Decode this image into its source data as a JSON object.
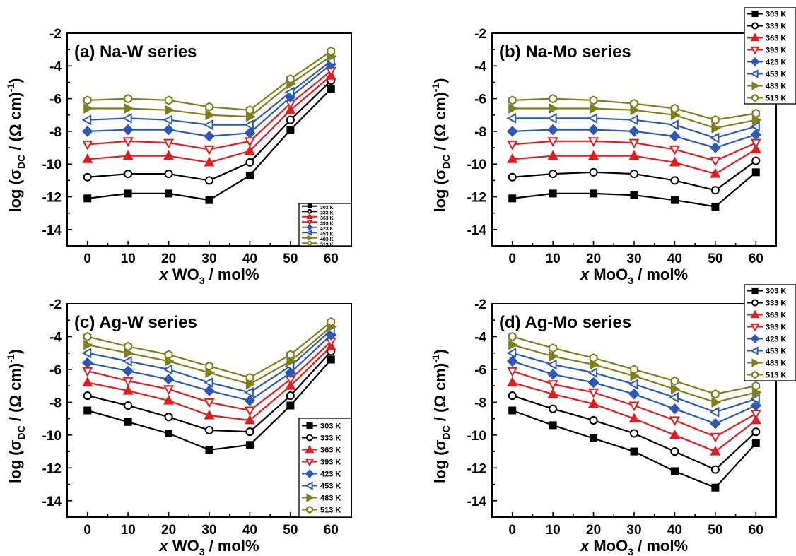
{
  "chart_data": [
    {
      "type": "line",
      "title": "(a) Na-W series",
      "xlabel": {
        "var": "x",
        "pre": " WO",
        "sub": "3",
        "post": " / mol%"
      },
      "ylabel": {
        "pre": "log (σ",
        "sub": "DC",
        "mid": " / (Ω cm)",
        "sup": "-1",
        "post": ")"
      },
      "x": [
        0,
        10,
        20,
        30,
        40,
        50,
        60
      ],
      "xlim": [
        -5,
        65
      ],
      "ylim": [
        -15,
        -2
      ],
      "xticks": [
        0,
        10,
        20,
        30,
        40,
        50,
        60
      ],
      "yticks": [
        -14,
        -12,
        -10,
        -8,
        -6,
        -4,
        -2
      ],
      "legend": "bottom-right",
      "series": [
        {
          "name": "303 K",
          "color": "#000000",
          "marker": "square",
          "values": [
            -12.1,
            -11.8,
            -11.8,
            -12.2,
            -10.7,
            -7.9,
            -5.4
          ]
        },
        {
          "name": "333 K",
          "color": "#000000",
          "marker": "circle-open",
          "values": [
            -10.8,
            -10.6,
            -10.6,
            -11.0,
            -9.9,
            -7.3,
            -4.9
          ]
        },
        {
          "name": "363 K",
          "color": "#e41a1c",
          "marker": "triangle-up",
          "values": [
            -9.7,
            -9.5,
            -9.5,
            -9.9,
            -9.2,
            -6.7,
            -4.6
          ]
        },
        {
          "name": "393 K",
          "color": "#e41a1c",
          "marker": "triangle-down-open",
          "values": [
            -8.8,
            -8.6,
            -8.7,
            -9.1,
            -8.6,
            -6.3,
            -4.3
          ]
        },
        {
          "name": "423 K",
          "color": "#2c58b8",
          "marker": "diamond",
          "values": [
            -8.0,
            -7.9,
            -7.9,
            -8.3,
            -8.1,
            -5.9,
            -3.9
          ]
        },
        {
          "name": "453 K",
          "color": "#2c58b8",
          "marker": "triangle-left-open",
          "values": [
            -7.3,
            -7.2,
            -7.3,
            -7.6,
            -7.6,
            -5.6,
            -3.7
          ]
        },
        {
          "name": "483 K",
          "color": "#7f7f1a",
          "marker": "triangle-right",
          "values": [
            -6.6,
            -6.6,
            -6.7,
            -7.0,
            -7.1,
            -5.1,
            -3.4
          ]
        },
        {
          "name": "513 K",
          "color": "#7f7f1a",
          "marker": "hexagon-open",
          "values": [
            -6.1,
            -6.0,
            -6.1,
            -6.5,
            -6.7,
            -4.8,
            -3.1
          ]
        }
      ]
    },
    {
      "type": "line",
      "title": "(b) Na-Mo series",
      "xlabel": {
        "var": "x",
        "pre": " MoO",
        "sub": "3",
        "post": " / mol%"
      },
      "ylabel": {
        "pre": "log (σ",
        "sub": "DC",
        "mid": " / (Ω cm)",
        "sup": "-1",
        "post": ")"
      },
      "x": [
        0,
        10,
        20,
        30,
        40,
        50,
        60
      ],
      "xlim": [
        -5,
        65
      ],
      "ylim": [
        -15,
        -2
      ],
      "xticks": [
        0,
        10,
        20,
        30,
        40,
        50,
        60
      ],
      "yticks": [
        -14,
        -12,
        -10,
        -8,
        -6,
        -4,
        -2
      ],
      "legend": "top-right",
      "series": [
        {
          "name": "303 K",
          "color": "#000000",
          "marker": "square",
          "values": [
            -12.1,
            -11.8,
            -11.8,
            -11.9,
            -12.2,
            -12.6,
            -10.5
          ]
        },
        {
          "name": "333 K",
          "color": "#000000",
          "marker": "circle-open",
          "values": [
            -10.8,
            -10.6,
            -10.5,
            -10.6,
            -11.0,
            -11.6,
            -9.8
          ]
        },
        {
          "name": "363 K",
          "color": "#e41a1c",
          "marker": "triangle-up",
          "values": [
            -9.7,
            -9.5,
            -9.5,
            -9.5,
            -9.9,
            -10.6,
            -9.1
          ]
        },
        {
          "name": "393 K",
          "color": "#e41a1c",
          "marker": "triangle-down-open",
          "values": [
            -8.8,
            -8.6,
            -8.6,
            -8.7,
            -9.1,
            -9.8,
            -8.7
          ]
        },
        {
          "name": "423 K",
          "color": "#2c58b8",
          "marker": "diamond",
          "values": [
            -8.0,
            -7.9,
            -7.9,
            -8.0,
            -8.3,
            -9.0,
            -8.2
          ]
        },
        {
          "name": "453 K",
          "color": "#2c58b8",
          "marker": "triangle-left-open",
          "values": [
            -7.2,
            -7.2,
            -7.2,
            -7.3,
            -7.6,
            -8.4,
            -7.7
          ]
        },
        {
          "name": "483 K",
          "color": "#7f7f1a",
          "marker": "triangle-right",
          "values": [
            -6.6,
            -6.6,
            -6.6,
            -6.7,
            -7.0,
            -7.8,
            -7.3
          ]
        },
        {
          "name": "513 K",
          "color": "#7f7f1a",
          "marker": "hexagon-open",
          "values": [
            -6.1,
            -6.0,
            -6.1,
            -6.3,
            -6.6,
            -7.3,
            -6.9
          ]
        }
      ]
    },
    {
      "type": "line",
      "title": "(c) Ag-W series",
      "xlabel": {
        "var": "x",
        "pre": " WO",
        "sub": "3",
        "post": " / mol%"
      },
      "ylabel": {
        "pre": "log (σ",
        "sub": "DC",
        "mid": " / (Ω cm)",
        "sup": "-1",
        "post": ")"
      },
      "x": [
        0,
        10,
        20,
        30,
        40,
        50,
        60
      ],
      "xlim": [
        -5,
        65
      ],
      "ylim": [
        -15,
        -2
      ],
      "xticks": [
        0,
        10,
        20,
        30,
        40,
        50,
        60
      ],
      "yticks": [
        -14,
        -12,
        -10,
        -8,
        -6,
        -4,
        -2
      ],
      "legend": "bottom-right",
      "series": [
        {
          "name": "303 K",
          "color": "#000000",
          "marker": "square",
          "values": [
            -8.5,
            -9.2,
            -9.9,
            -10.9,
            -10.6,
            -8.2,
            -5.4
          ]
        },
        {
          "name": "333 K",
          "color": "#000000",
          "marker": "circle-open",
          "values": [
            -7.6,
            -8.2,
            -8.9,
            -9.7,
            -9.8,
            -7.6,
            -4.9
          ]
        },
        {
          "name": "363 K",
          "color": "#e41a1c",
          "marker": "triangle-up",
          "values": [
            -6.8,
            -7.3,
            -7.9,
            -8.8,
            -9.1,
            -7.0,
            -4.6
          ]
        },
        {
          "name": "393 K",
          "color": "#e41a1c",
          "marker": "triangle-down-open",
          "values": [
            -6.1,
            -6.7,
            -7.2,
            -8.0,
            -8.5,
            -6.6,
            -4.3
          ]
        },
        {
          "name": "423 K",
          "color": "#2c58b8",
          "marker": "diamond",
          "values": [
            -5.6,
            -6.1,
            -6.6,
            -7.3,
            -7.9,
            -6.2,
            -3.9
          ]
        },
        {
          "name": "453 K",
          "color": "#2c58b8",
          "marker": "triangle-left-open",
          "values": [
            -5.0,
            -5.5,
            -6.0,
            -6.8,
            -7.4,
            -5.8,
            -3.6
          ]
        },
        {
          "name": "483 K",
          "color": "#7f7f1a",
          "marker": "triangle-right",
          "values": [
            -4.5,
            -5.0,
            -5.5,
            -6.2,
            -6.9,
            -5.5,
            -3.4
          ]
        },
        {
          "name": "513 K",
          "color": "#7f7f1a",
          "marker": "hexagon-open",
          "values": [
            -4.0,
            -4.6,
            -5.1,
            -5.8,
            -6.5,
            -5.1,
            -3.1
          ]
        }
      ]
    },
    {
      "type": "line",
      "title": "(d) Ag-Mo series",
      "xlabel": {
        "var": "x",
        "pre": " MoO",
        "sub": "3",
        "post": " / mol%"
      },
      "ylabel": {
        "pre": "log (σ",
        "sub": "DC",
        "mid": " / (Ω cm)",
        "sup": "-1",
        "post": ")"
      },
      "x": [
        0,
        10,
        20,
        30,
        40,
        50,
        60
      ],
      "xlim": [
        -5,
        65
      ],
      "ylim": [
        -15,
        -2
      ],
      "xticks": [
        0,
        10,
        20,
        30,
        40,
        50,
        60
      ],
      "yticks": [
        -14,
        -12,
        -10,
        -8,
        -6,
        -4,
        -2
      ],
      "legend": "top-right",
      "series": [
        {
          "name": "303 K",
          "color": "#000000",
          "marker": "square",
          "values": [
            -8.5,
            -9.4,
            -10.2,
            -11.0,
            -12.2,
            -13.2,
            -10.5
          ]
        },
        {
          "name": "333 K",
          "color": "#000000",
          "marker": "circle-open",
          "values": [
            -7.6,
            -8.4,
            -9.1,
            -9.9,
            -11.0,
            -12.1,
            -9.8
          ]
        },
        {
          "name": "363 K",
          "color": "#e41a1c",
          "marker": "triangle-up",
          "values": [
            -6.8,
            -7.5,
            -8.1,
            -9.0,
            -10.0,
            -11.0,
            -9.1
          ]
        },
        {
          "name": "393 K",
          "color": "#e41a1c",
          "marker": "triangle-down-open",
          "values": [
            -6.1,
            -6.9,
            -7.4,
            -8.2,
            -9.1,
            -10.1,
            -8.7
          ]
        },
        {
          "name": "423 K",
          "color": "#2c58b8",
          "marker": "diamond",
          "values": [
            -5.5,
            -6.3,
            -6.8,
            -7.5,
            -8.4,
            -9.3,
            -8.2
          ]
        },
        {
          "name": "453 K",
          "color": "#2c58b8",
          "marker": "triangle-left-open",
          "values": [
            -5.0,
            -5.7,
            -6.2,
            -6.9,
            -7.7,
            -8.6,
            -7.8
          ]
        },
        {
          "name": "483 K",
          "color": "#7f7f1a",
          "marker": "triangle-right",
          "values": [
            -4.5,
            -5.2,
            -5.7,
            -6.4,
            -7.2,
            -8.0,
            -7.4
          ]
        },
        {
          "name": "513 K",
          "color": "#7f7f1a",
          "marker": "hexagon-open",
          "values": [
            -4.0,
            -4.7,
            -5.3,
            -6.0,
            -6.7,
            -7.5,
            -7.0
          ]
        }
      ]
    }
  ]
}
